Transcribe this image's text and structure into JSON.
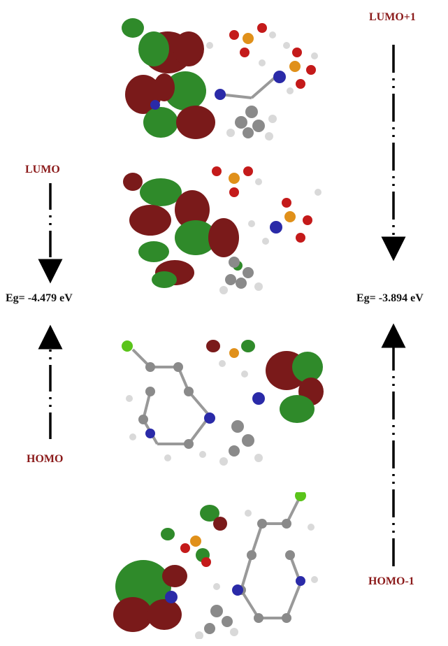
{
  "labels": {
    "lumo": "LUMO",
    "homo": "HOMO",
    "lumo_plus_1": "LUMO+1",
    "homo_minus_1": "HOMO-1",
    "eg_left": "Eg= -4.479 eV",
    "eg_right": "Eg= -3.894 eV"
  },
  "colors": {
    "label_red": "#8b1a1a",
    "lobe_red": "#7a1a1a",
    "lobe_green": "#2f8a2a",
    "atom_carbon": "#8a8a8a",
    "atom_hydrogen": "#d9d9d9",
    "atom_nitrogen": "#2a2aa8",
    "atom_oxygen": "#c41a1a",
    "atom_phosphorus": "#e0901a",
    "atom_chlorine": "#5ac41a"
  },
  "orbitals": [
    {
      "name": "LUMO+1",
      "lobe_side": "quinoline"
    },
    {
      "name": "LUMO",
      "lobe_side": "quinoline"
    },
    {
      "name": "HOMO",
      "lobe_side": "phosphate"
    },
    {
      "name": "HOMO-1",
      "lobe_side": "phosphate"
    }
  ]
}
